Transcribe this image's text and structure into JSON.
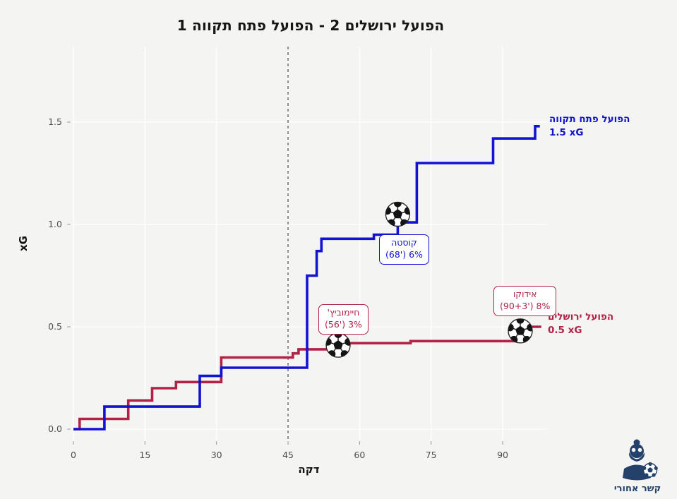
{
  "title": "הפועל ירושלים 2 - הפועל פתח תקווה 1",
  "colors": {
    "background": "#f4f4f2",
    "grid": "#fdfdfd",
    "tick_text": "#4d4d4d",
    "tick_mark": "#9a9a9a",
    "halftime_dash": "#4a4a4a",
    "away_blue": "#1212d2",
    "home_red": "#b02347",
    "logo_navy": "#24416b"
  },
  "labels": {
    "away_xg": "1.5 xG",
    "home_xg": "0.5 xG"
  },
  "chart_data": {
    "type": "line",
    "subtype": "step",
    "title": "הפועל ירושלים 2 - הפועל פתח תקווה 1",
    "xlabel": "דקה",
    "ylabel": "xG",
    "x_ticks": [
      0,
      15,
      30,
      45,
      60,
      75,
      90
    ],
    "y_ticks": [
      "0.0",
      "0.5",
      "1.0",
      "1.5"
    ],
    "y_tick_values": [
      0,
      0.5,
      1.0,
      1.5
    ],
    "xlim": [
      -0.5,
      99
    ],
    "ylim": [
      -0.06,
      1.87
    ],
    "grid": "on",
    "halftime_line_x": 45,
    "legend_position": "line-end-labels",
    "series": [
      {
        "name": "הפועל פתח תקווה",
        "color": "#1212d2",
        "final_xg": 1.5,
        "end_minute": 97.8,
        "points": [
          [
            0,
            0
          ],
          [
            6.5,
            0.11
          ],
          [
            26.5,
            0.26
          ],
          [
            31,
            0.3
          ],
          [
            49,
            0.75
          ],
          [
            51,
            0.87
          ],
          [
            52,
            0.93
          ],
          [
            63,
            0.95
          ],
          [
            68,
            1.01
          ],
          [
            72,
            1.3
          ],
          [
            88,
            1.42
          ],
          [
            96.8,
            1.48
          ]
        ],
        "goals": [
          {
            "player": "קוסטה",
            "detail": "(68') 6%",
            "minute": 68,
            "xg_at": 1.05,
            "label_side": "below"
          }
        ]
      },
      {
        "name": "הפועל ירושלים",
        "color": "#b02347",
        "final_xg": 0.5,
        "end_minute": 98.1,
        "points": [
          [
            0,
            0
          ],
          [
            1.3,
            0.05
          ],
          [
            11.5,
            0.14
          ],
          [
            16.5,
            0.2
          ],
          [
            21.5,
            0.23
          ],
          [
            31,
            0.35
          ],
          [
            46,
            0.37
          ],
          [
            47.2,
            0.39
          ],
          [
            55.5,
            0.42
          ],
          [
            70.7,
            0.43
          ],
          [
            93.7,
            0.5
          ]
        ],
        "goals": [
          {
            "player": "חיימוביץ'",
            "detail": "(56') 3%",
            "minute": 55.5,
            "xg_at": 0.41,
            "label_side": "above"
          },
          {
            "player": "אידוקו",
            "detail": "(90+3') 8%",
            "minute": 93.7,
            "xg_at": 0.48,
            "label_side": "above"
          }
        ]
      }
    ]
  },
  "logo": {
    "text": "קשר אחורי"
  }
}
